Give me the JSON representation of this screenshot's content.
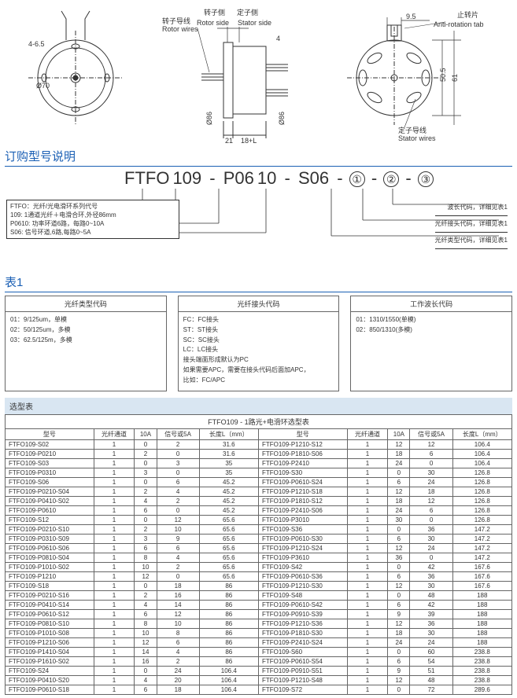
{
  "diagram": {
    "labels": {
      "rotor_side_cn": "转子侧",
      "rotor_side_en": "Rotor side",
      "stator_side_cn": "定子侧",
      "stator_side_en": "Stator side",
      "rotor_wires_cn": "转子导线",
      "rotor_wires_en": "Rotor wires",
      "stator_wires_cn": "定子导线",
      "stator_wires_en": "Stator wires",
      "anti_rot_cn": "止转片",
      "anti_rot_en": "Anti-rotation tab",
      "dim_465": "4-6.5",
      "dim_phi70": "Ø70",
      "dim_phi86": "Ø86",
      "dim_phi86b": "Ø86",
      "dim_4": "4",
      "dim_21": "21",
      "dim_18L": "18+L",
      "dim_95": "9.5",
      "dim_505": "50.5",
      "dim_61": "61"
    },
    "colors": {
      "line": "#333333",
      "text": "#333333",
      "dim": "#333333"
    }
  },
  "order_section_title": "订购型号说明",
  "order_code": {
    "seg1": "FTFO",
    "seg2": "109",
    "seg3": "P06",
    "seg4": "10",
    "seg5": "S06",
    "c1": "①",
    "c2": "②",
    "c3": "③",
    "dash": "-"
  },
  "order_legend_left": [
    "FTFO：光纤/光电滑环系列代号",
    "109: 1通道光纤＋电滑合环,外径86mm",
    "P0610: 功率环道6路，每路0~10A",
    "S06: 信号环道,6路,每路0~5A"
  ],
  "order_legend_right": [
    "波长代码，详细见表1",
    "光纤接头代码，详细见表1",
    "光纤类型代码，详细见表1"
  ],
  "table1_title": "表1",
  "table1": {
    "col1_head": "光纤类型代码",
    "col2_head": "光纤接头代码",
    "col3_head": "工作波长代码",
    "col1_body": [
      "01：9/125um，单模",
      "02：50/125um，多模",
      "03：62.5/125m，多模"
    ],
    "col2_body": [
      "FC：FC接头",
      "ST：ST接头",
      "SC：SC接头",
      "LC：LC接头",
      "接头端面形成默认为PC",
      "如果需要APC，需要在接头代码后面加APC，",
      "比如：FC/APC"
    ],
    "col3_body": [
      "01：1310/1550(单模)",
      "02：850/1310(多模)"
    ]
  },
  "sel_section_title": "选型表",
  "sel_caption": "FTFO109 - 1路光+电滑环选型表",
  "sel_headers": [
    "型号",
    "光纤通道",
    "10A",
    "信号或5A",
    "长度L（mm）",
    "型号",
    "光纤通道",
    "10A",
    "信号或5A",
    "长度L（mm）"
  ],
  "sel_rows": [
    [
      "FTFO109-S02",
      "1",
      "0",
      "2",
      "31.6",
      "FTFO109-P1210-S12",
      "1",
      "12",
      "12",
      "106.4"
    ],
    [
      "FTFO109-P0210",
      "1",
      "2",
      "0",
      "31.6",
      "FTFO109-P1810-S06",
      "1",
      "18",
      "6",
      "106.4"
    ],
    [
      "FTFO109-S03",
      "1",
      "0",
      "3",
      "35",
      "FTFO109-P2410",
      "1",
      "24",
      "0",
      "106.4"
    ],
    [
      "FTFO109-P0310",
      "1",
      "3",
      "0",
      "35",
      "FTFO109-S30",
      "1",
      "0",
      "30",
      "126.8"
    ],
    [
      "FTFO109-S06",
      "1",
      "0",
      "6",
      "45.2",
      "FTFO109-P0610-S24",
      "1",
      "6",
      "24",
      "126.8"
    ],
    [
      "FTFO109-P0210-S04",
      "1",
      "2",
      "4",
      "45.2",
      "FTFO109-P1210-S18",
      "1",
      "12",
      "18",
      "126.8"
    ],
    [
      "FTFO109-P0410-S02",
      "1",
      "4",
      "2",
      "45.2",
      "FTFO109-P1810-S12",
      "1",
      "18",
      "12",
      "126.8"
    ],
    [
      "FTFO109-P0610",
      "1",
      "6",
      "0",
      "45.2",
      "FTFO109-P2410-S06",
      "1",
      "24",
      "6",
      "126.8"
    ],
    [
      "FTFO109-S12",
      "1",
      "0",
      "12",
      "65.6",
      "FTFO109-P3010",
      "1",
      "30",
      "0",
      "126.8"
    ],
    [
      "FTFO109-P0210-S10",
      "1",
      "2",
      "10",
      "65.6",
      "FTFO109-S36",
      "1",
      "0",
      "36",
      "147.2"
    ],
    [
      "FTFO109-P0310-S09",
      "1",
      "3",
      "9",
      "65.6",
      "FTFO109-P0610-S30",
      "1",
      "6",
      "30",
      "147.2"
    ],
    [
      "FTFO109-P0610-S06",
      "1",
      "6",
      "6",
      "65.6",
      "FTFO109-P1210-S24",
      "1",
      "12",
      "24",
      "147.2"
    ],
    [
      "FTFO109-P0810-S04",
      "1",
      "8",
      "4",
      "65.6",
      "FTFO109-P3610",
      "1",
      "36",
      "0",
      "147.2"
    ],
    [
      "FTFO109-P1010-S02",
      "1",
      "10",
      "2",
      "65.6",
      "FTFO109-S42",
      "1",
      "0",
      "42",
      "167.6"
    ],
    [
      "FTFO109-P1210",
      "1",
      "12",
      "0",
      "65.6",
      "FTFO109-P0610-S36",
      "1",
      "6",
      "36",
      "167.6"
    ],
    [
      "FTFO109-S18",
      "1",
      "0",
      "18",
      "86",
      "FTFO109-P1210-S30",
      "1",
      "12",
      "30",
      "167.6"
    ],
    [
      "FTFO109-P0210-S16",
      "1",
      "2",
      "16",
      "86",
      "FTFO109-S48",
      "1",
      "0",
      "48",
      "188"
    ],
    [
      "FTFO109-P0410-S14",
      "1",
      "4",
      "14",
      "86",
      "FTFO109-P0610-S42",
      "1",
      "6",
      "42",
      "188"
    ],
    [
      "FTFO109-P0610-S12",
      "1",
      "6",
      "12",
      "86",
      "FTFO109-P0910-S39",
      "1",
      "9",
      "39",
      "188"
    ],
    [
      "FTFO109-P0810-S10",
      "1",
      "8",
      "10",
      "86",
      "FTFO109-P1210-S36",
      "1",
      "12",
      "36",
      "188"
    ],
    [
      "FTFO109-P1010-S08",
      "1",
      "10",
      "8",
      "86",
      "FTFO109-P1810-S30",
      "1",
      "18",
      "30",
      "188"
    ],
    [
      "FTFO109-P1210-S06",
      "1",
      "12",
      "6",
      "86",
      "FTFO109-P2410-S24",
      "1",
      "24",
      "24",
      "188"
    ],
    [
      "FTFO109-P1410-S04",
      "1",
      "14",
      "4",
      "86",
      "FTFO109-S60",
      "1",
      "0",
      "60",
      "238.8"
    ],
    [
      "FTFO109-P1610-S02",
      "1",
      "16",
      "2",
      "86",
      "FTFO109-P0610-S54",
      "1",
      "6",
      "54",
      "238.8"
    ],
    [
      "FTFO109-S24",
      "1",
      "0",
      "24",
      "106.4",
      "FTFO109-P0910-S51",
      "1",
      "9",
      "51",
      "238.8"
    ],
    [
      "FTFO109-P0410-S20",
      "1",
      "4",
      "20",
      "106.4",
      "FTFO109-P1210-S48",
      "1",
      "12",
      "48",
      "238.8"
    ],
    [
      "FTFO109-P0610-S18",
      "1",
      "6",
      "18",
      "106.4",
      "FTFO109-S72",
      "1",
      "0",
      "72",
      "289.6"
    ]
  ]
}
